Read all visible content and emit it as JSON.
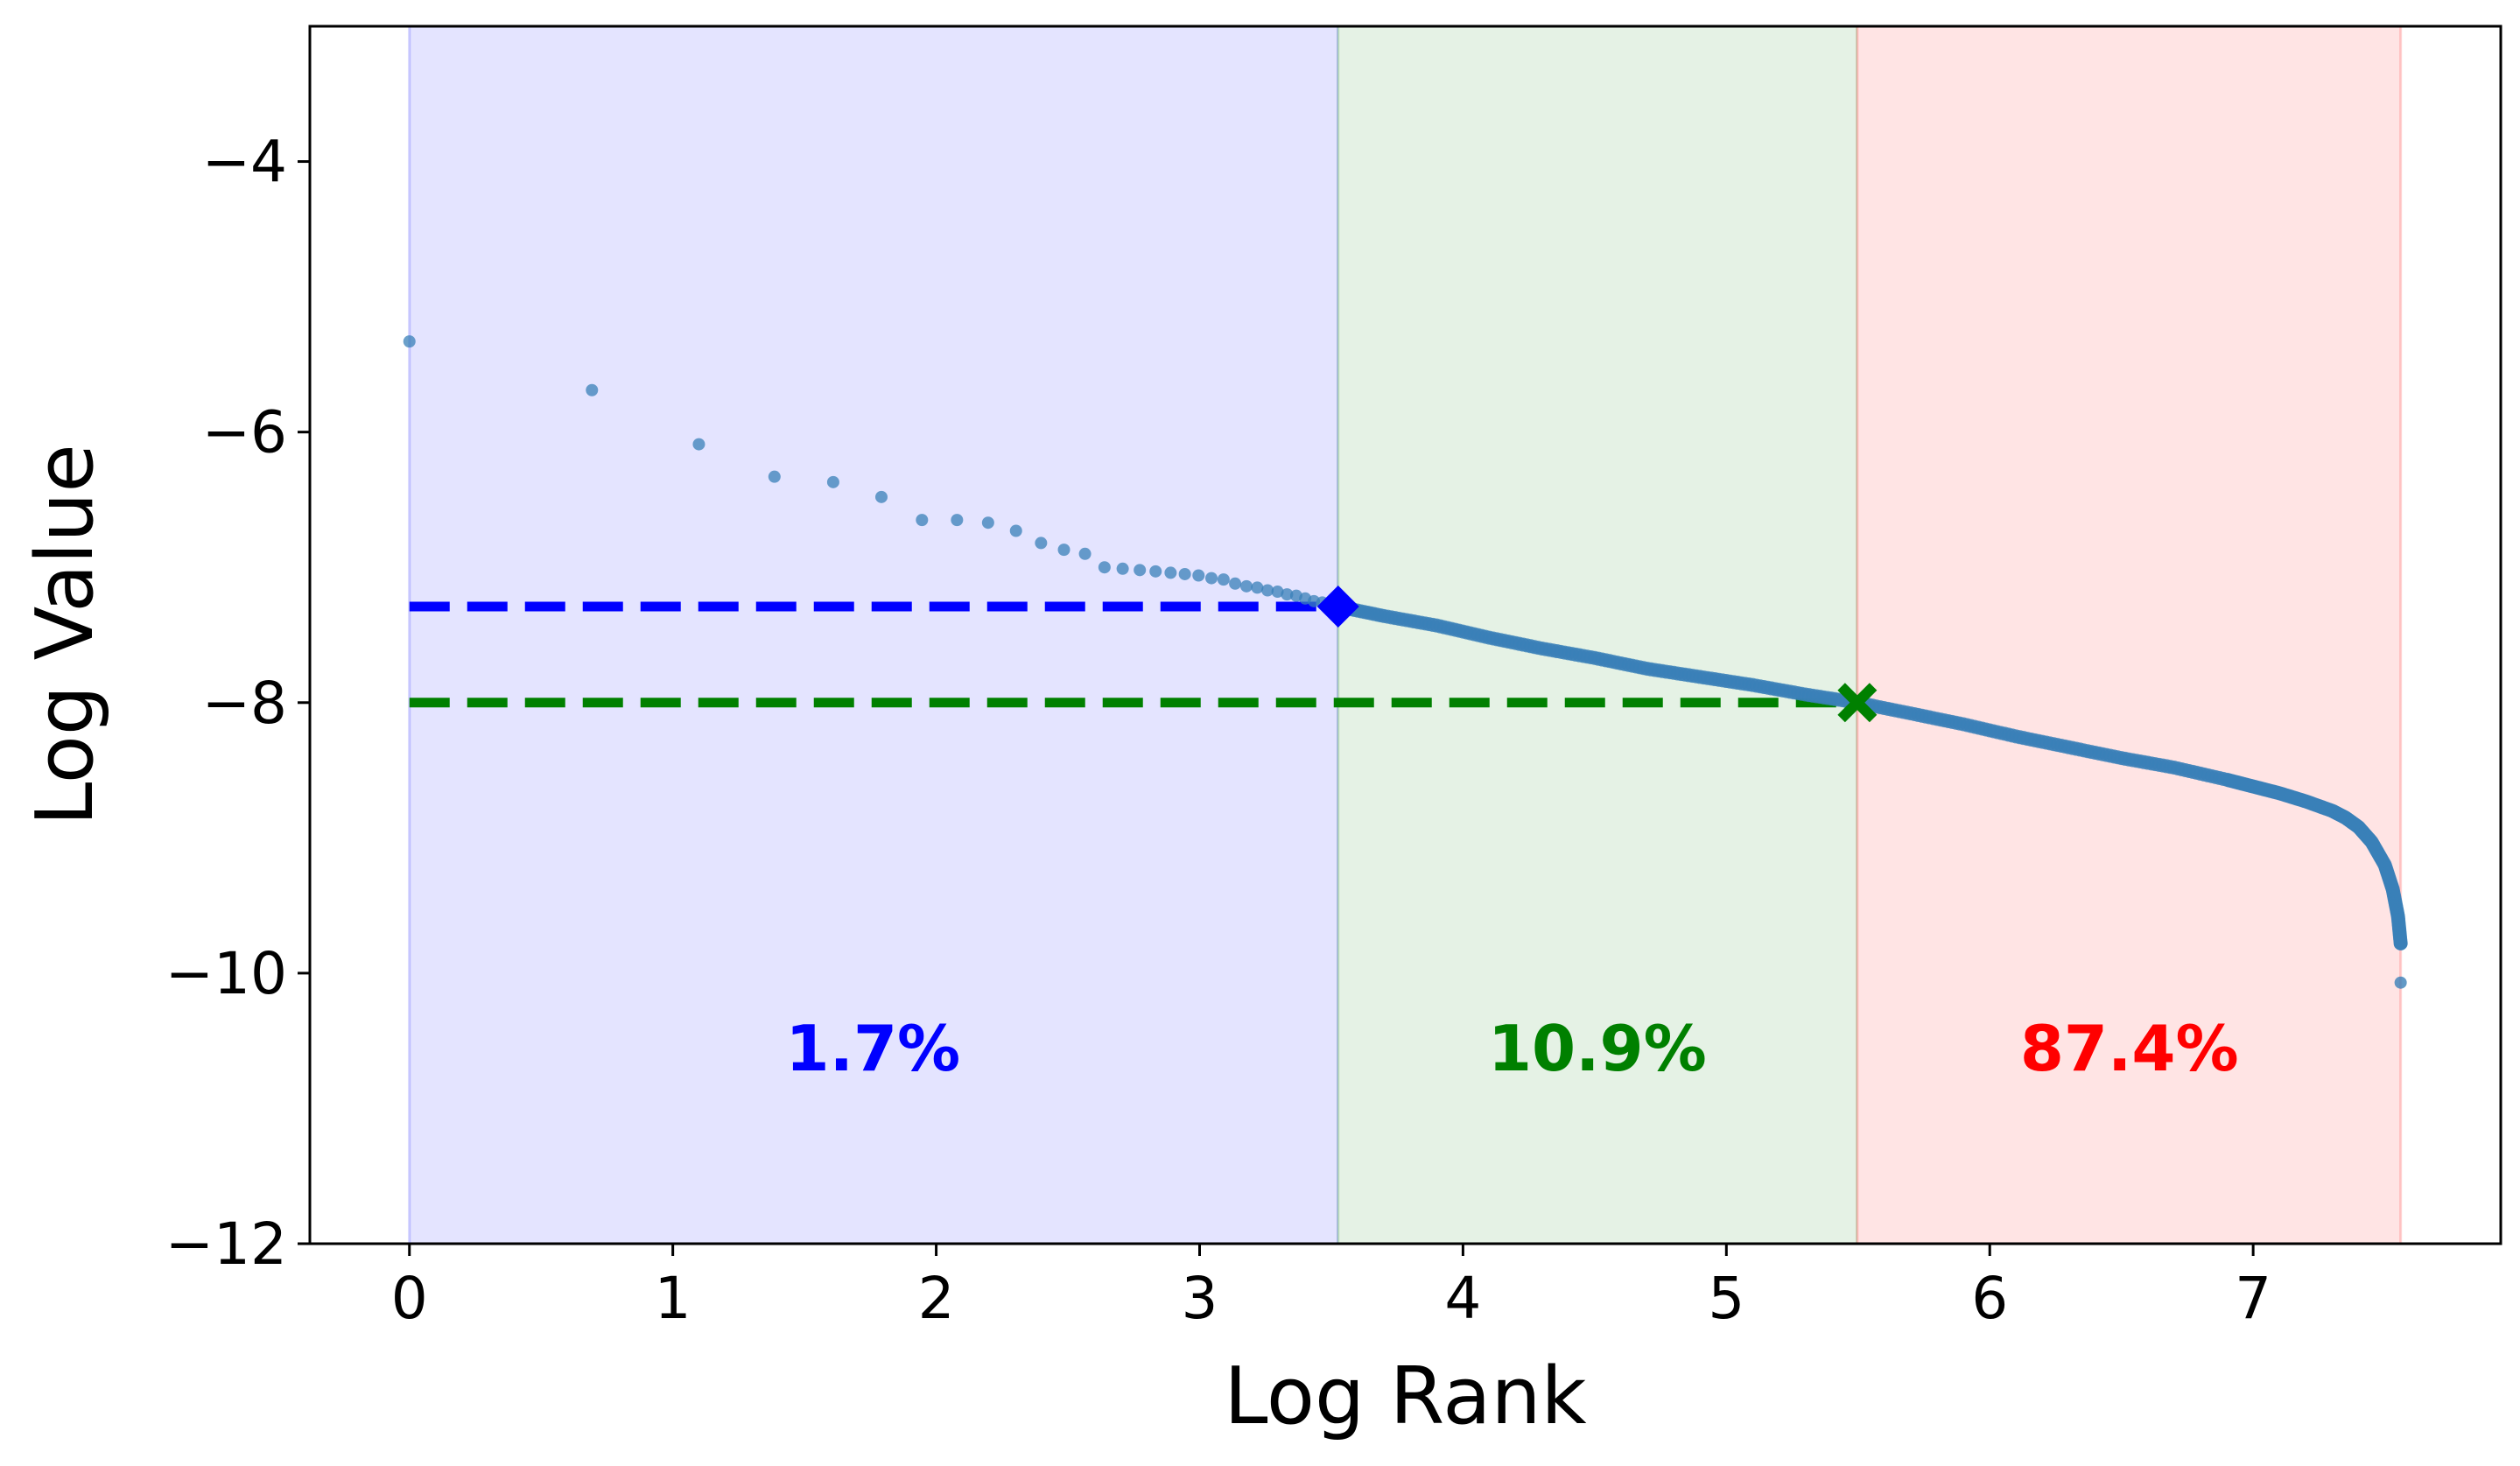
{
  "chart_data": {
    "type": "scatter",
    "title": "",
    "xlabel": "Log Rank",
    "ylabel": "Log Value",
    "xlim": [
      -0.378,
      7.94
    ],
    "ylim": [
      -12,
      -3.0
    ],
    "xticks": [
      0,
      1,
      2,
      3,
      4,
      5,
      6,
      7
    ],
    "xtick_labels": [
      "0",
      "1",
      "2",
      "3",
      "4",
      "5",
      "6",
      "7"
    ],
    "yticks": [
      -4,
      -6,
      -8,
      -10,
      -12
    ],
    "ytick_labels": [
      "−4",
      "−6",
      "−8",
      "−10",
      "−12"
    ],
    "grid": false,
    "colors": {
      "points": "#3a80b8",
      "blue": "#0000ff",
      "green": "#008000",
      "red": "#ff0000",
      "blue_fill": "#e4e4ff",
      "green_fill": "#e5f2e5",
      "red_fill": "#ffe4e4"
    },
    "regions": [
      {
        "x_start": 0,
        "x_end": 3.526,
        "color": "blue",
        "label": "1.7%",
        "label_x": 1.76,
        "label_y": -10.55
      },
      {
        "x_start": 3.526,
        "x_end": 5.497,
        "color": "green",
        "label": "10.9%",
        "label_x": 4.51,
        "label_y": -10.55
      },
      {
        "x_start": 5.497,
        "x_end": 7.56,
        "color": "red",
        "label": "87.4%",
        "label_x": 6.53,
        "label_y": -10.55
      }
    ],
    "thresholds": [
      {
        "x": 3.526,
        "y": -7.29,
        "color": "blue",
        "marker": "diamond"
      },
      {
        "x": 5.497,
        "y": -8.0,
        "color": "green",
        "marker": "x"
      }
    ],
    "series": [
      {
        "points": [
          [
            0.0,
            -5.33
          ],
          [
            0.693,
            -5.69
          ],
          [
            1.099,
            -6.09
          ],
          [
            1.386,
            -6.33
          ],
          [
            1.609,
            -6.37
          ],
          [
            1.792,
            -6.48
          ],
          [
            1.946,
            -6.65
          ],
          [
            2.079,
            -6.65
          ],
          [
            2.197,
            -6.67
          ],
          [
            2.303,
            -6.73
          ],
          [
            2.398,
            -6.82
          ],
          [
            2.485,
            -6.87
          ],
          [
            2.565,
            -6.9
          ],
          [
            2.639,
            -7.0
          ],
          [
            2.708,
            -7.01
          ],
          [
            2.773,
            -7.02
          ],
          [
            2.833,
            -7.03
          ],
          [
            2.89,
            -7.04
          ],
          [
            2.944,
            -7.05
          ],
          [
            2.996,
            -7.06
          ],
          [
            3.045,
            -7.08
          ],
          [
            3.091,
            -7.09
          ],
          [
            3.135,
            -7.12
          ],
          [
            3.178,
            -7.14
          ],
          [
            3.219,
            -7.15
          ],
          [
            3.258,
            -7.17
          ],
          [
            3.296,
            -7.18
          ],
          [
            3.332,
            -7.2
          ],
          [
            3.367,
            -7.21
          ],
          [
            3.401,
            -7.23
          ],
          [
            3.434,
            -7.25
          ],
          [
            3.466,
            -7.26
          ],
          [
            3.497,
            -7.28
          ],
          [
            3.526,
            -7.29
          ]
        ],
        "curve": [
          [
            3.526,
            -7.29
          ],
          [
            3.7,
            -7.36
          ],
          [
            3.9,
            -7.43
          ],
          [
            4.1,
            -7.52
          ],
          [
            4.3,
            -7.6
          ],
          [
            4.5,
            -7.67
          ],
          [
            4.7,
            -7.75
          ],
          [
            4.9,
            -7.81
          ],
          [
            5.1,
            -7.87
          ],
          [
            5.3,
            -7.94
          ],
          [
            5.497,
            -8.0
          ],
          [
            5.7,
            -8.08
          ],
          [
            5.9,
            -8.16
          ],
          [
            6.1,
            -8.25
          ],
          [
            6.3,
            -8.33
          ],
          [
            6.5,
            -8.41
          ],
          [
            6.7,
            -8.48
          ],
          [
            6.9,
            -8.57
          ],
          [
            7.0,
            -8.62
          ],
          [
            7.1,
            -8.67
          ],
          [
            7.2,
            -8.73
          ],
          [
            7.3,
            -8.8
          ],
          [
            7.35,
            -8.85
          ],
          [
            7.4,
            -8.92
          ],
          [
            7.45,
            -9.03
          ],
          [
            7.5,
            -9.2
          ],
          [
            7.53,
            -9.38
          ],
          [
            7.55,
            -9.58
          ],
          [
            7.56,
            -9.78
          ]
        ],
        "outlier": [
          7.56,
          -10.07
        ]
      }
    ]
  }
}
